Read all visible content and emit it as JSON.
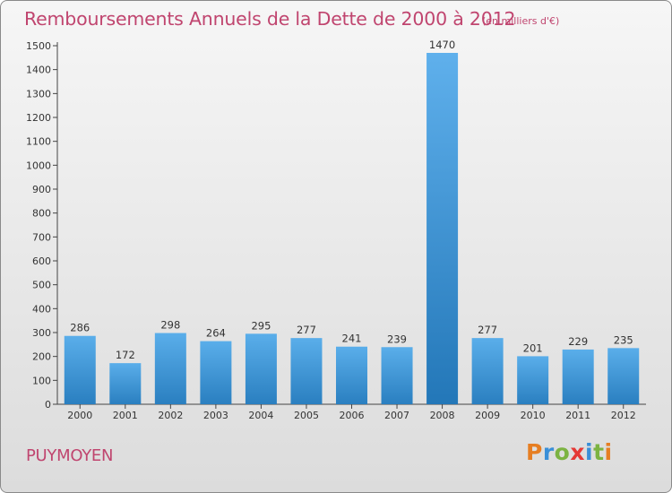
{
  "chart_data": {
    "type": "bar",
    "title": "Remboursements Annuels de la Dette de 2000 à 2012",
    "subtitle": "(en milliers d'€)",
    "categories": [
      "2000",
      "2001",
      "2002",
      "2003",
      "2004",
      "2005",
      "2006",
      "2007",
      "2008",
      "2009",
      "2010",
      "2011",
      "2012"
    ],
    "values": [
      286,
      172,
      298,
      264,
      295,
      277,
      241,
      239,
      1470,
      277,
      201,
      229,
      235
    ],
    "ylim": [
      0,
      1500
    ],
    "yticks": [
      0,
      100,
      200,
      300,
      400,
      500,
      600,
      700,
      800,
      900,
      1000,
      1100,
      1200,
      1300,
      1400,
      1500
    ],
    "grid": false,
    "bar_color_light": "#5aaeea",
    "bar_color_dark": "#2a7fc0",
    "highlight_category": "2008",
    "highlight_color_light": "#5fb0ec",
    "highlight_color_dark": "#2377b8"
  },
  "footer": {
    "place": "PUYMOYEN",
    "logo_letters": [
      {
        "ch": "P",
        "color": "#e67e22"
      },
      {
        "ch": "r",
        "color": "#3a8fd8"
      },
      {
        "ch": "o",
        "color": "#7cb342"
      },
      {
        "ch": "x",
        "color": "#e53935"
      },
      {
        "ch": "i",
        "color": "#3a8fd8"
      },
      {
        "ch": "t",
        "color": "#7cb342"
      },
      {
        "ch": "i",
        "color": "#e67e22"
      }
    ]
  },
  "colors": {
    "title": "#c0456f",
    "axis": "#444444",
    "text": "#333333"
  }
}
